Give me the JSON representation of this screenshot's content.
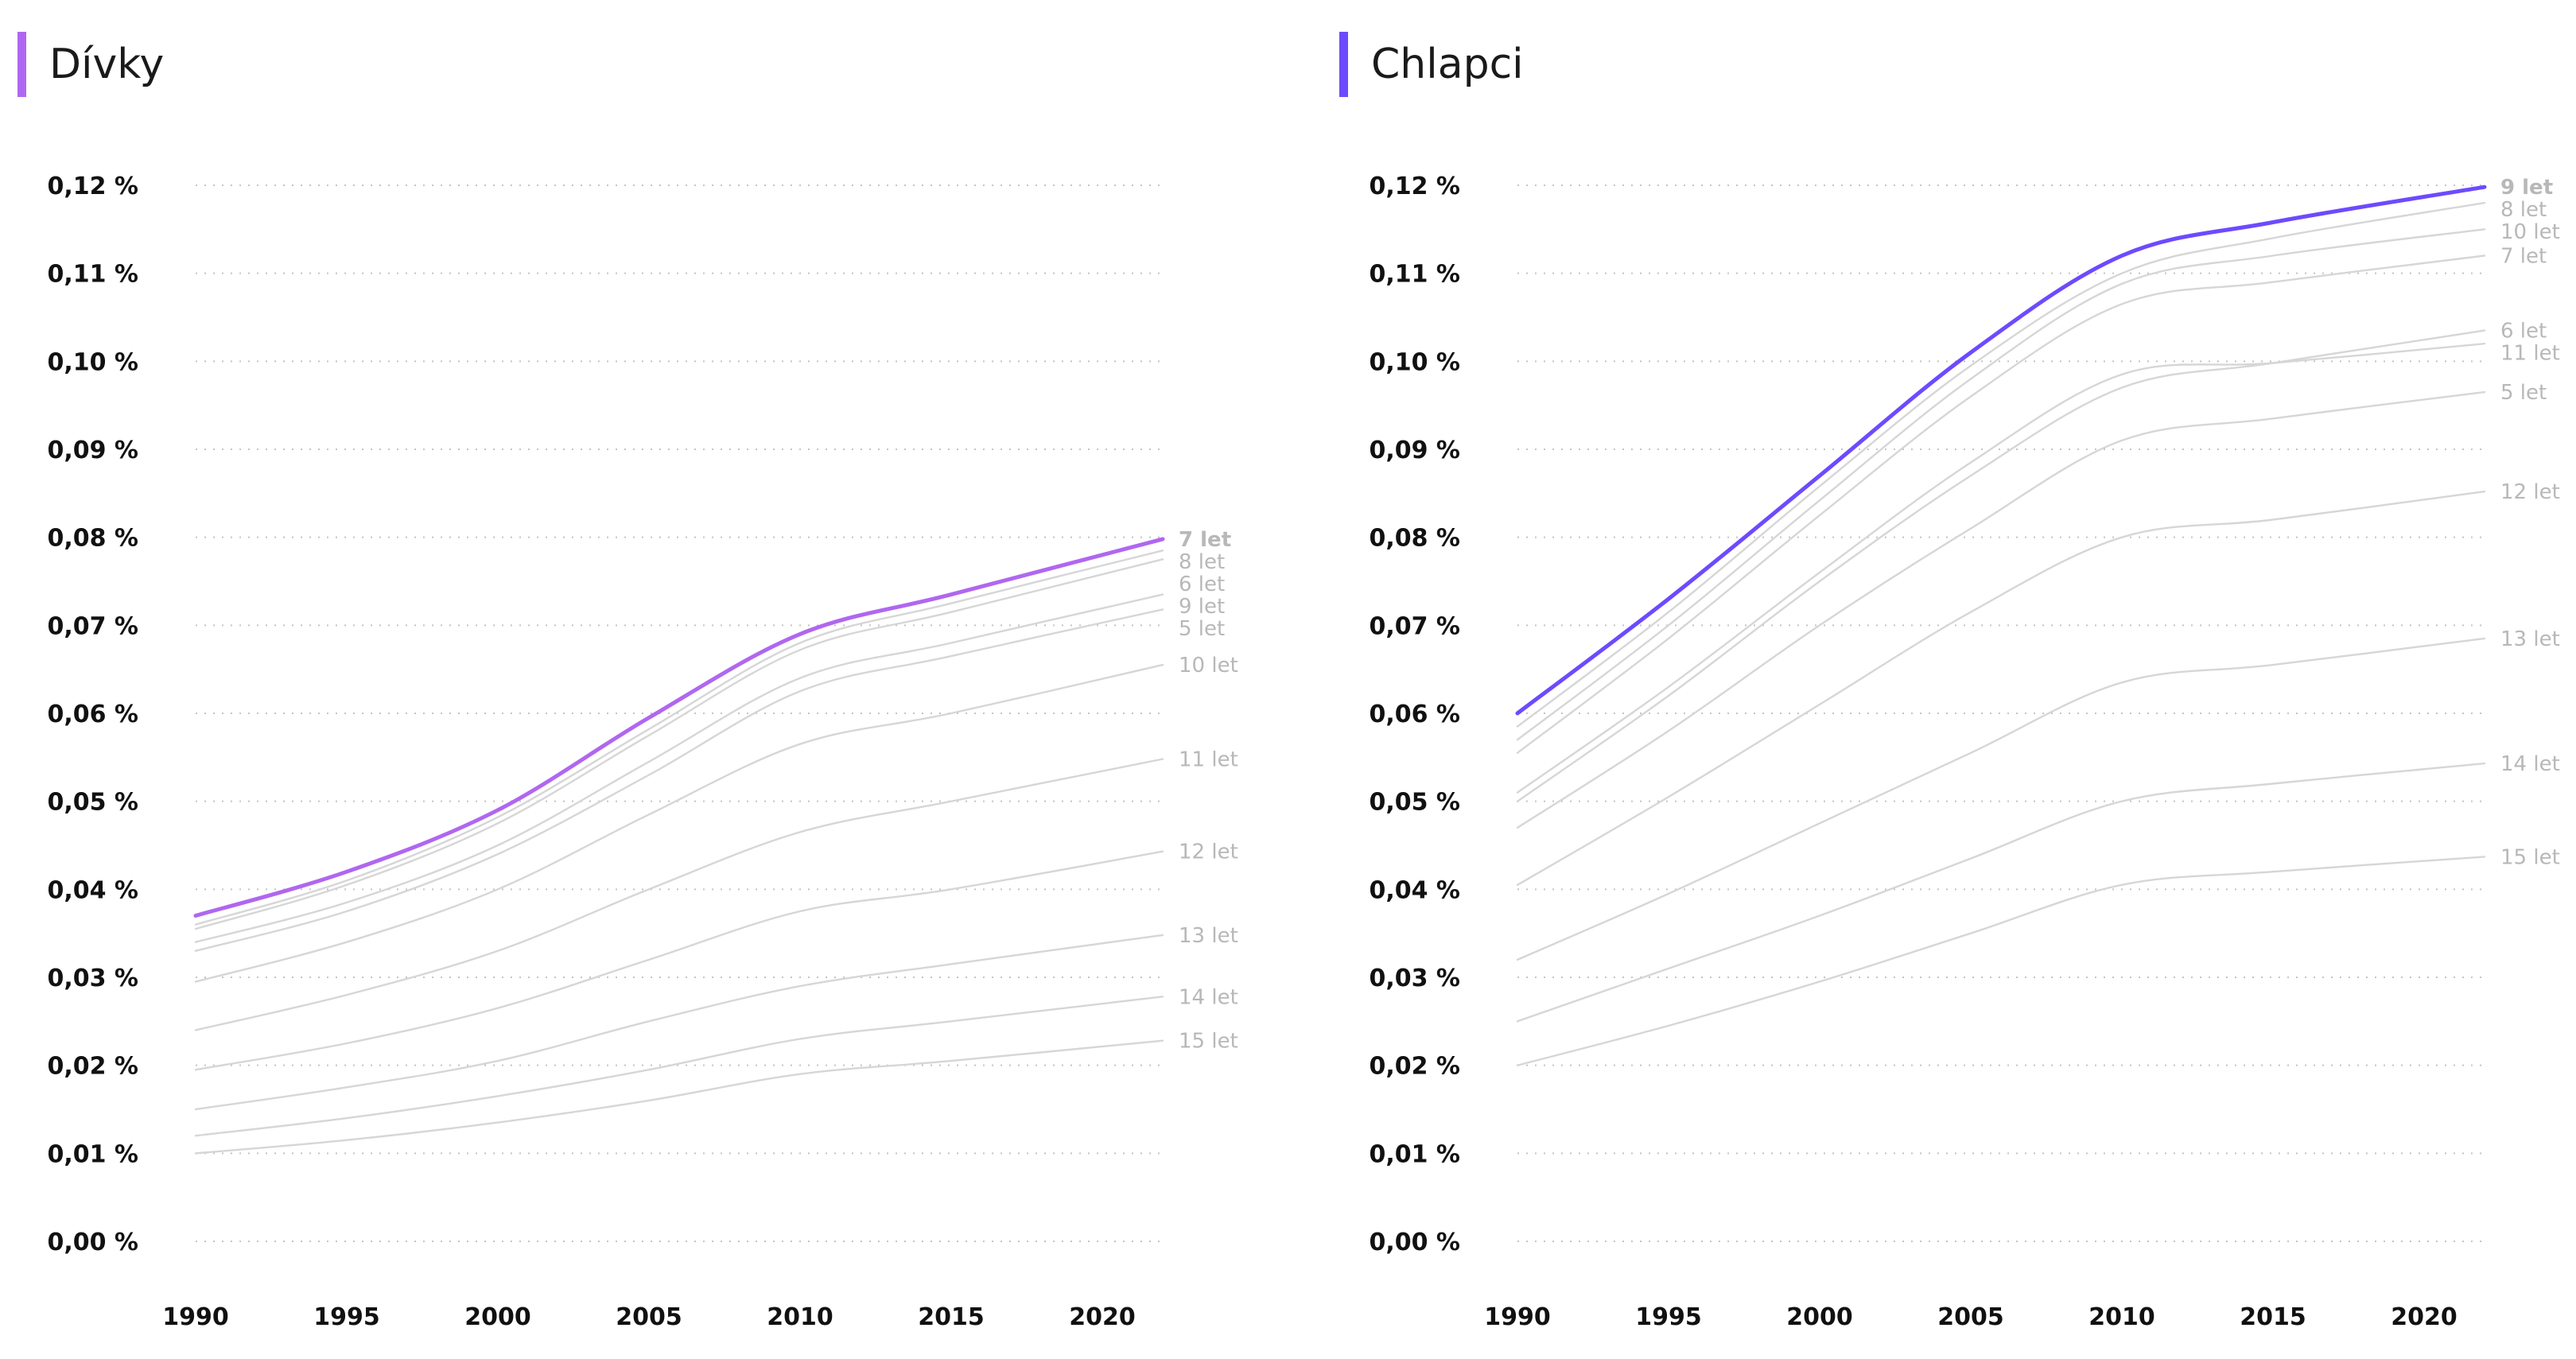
{
  "chart_data": [
    {
      "type": "line",
      "title": "Dívky",
      "accent_color": "#b067f0",
      "highlight_series": "7 let",
      "xlabel": "",
      "ylabel": "",
      "xlim": [
        1990,
        2022
      ],
      "ylim": [
        0,
        0.12
      ],
      "x_ticks": [
        "1990",
        "1995",
        "2000",
        "2005",
        "2010",
        "2015",
        "2020"
      ],
      "y_ticks": [
        "0,00 %",
        "0,01 %",
        "0,02 %",
        "0,03 %",
        "0,04 %",
        "0,05 %",
        "0,06 %",
        "0,07 %",
        "0,08 %",
        "0,09 %",
        "0,10 %",
        "0,11 %",
        "0,12 %"
      ],
      "grid": true,
      "x": [
        1990,
        1995,
        2000,
        2005,
        2010,
        2015,
        2022
      ],
      "series": [
        {
          "name": "5 let",
          "values": [
            0.033,
            0.0375,
            0.044,
            0.053,
            0.0625,
            0.0665,
            0.0718
          ]
        },
        {
          "name": "6 let",
          "values": [
            0.0355,
            0.0405,
            0.0475,
            0.0575,
            0.0672,
            0.0715,
            0.0775
          ]
        },
        {
          "name": "7 let",
          "values": [
            0.037,
            0.042,
            0.049,
            0.0595,
            0.069,
            0.0735,
            0.0798
          ]
        },
        {
          "name": "8 let",
          "values": [
            0.036,
            0.041,
            0.0482,
            0.0582,
            0.068,
            0.0725,
            0.0785
          ]
        },
        {
          "name": "9 let",
          "values": [
            0.034,
            0.0385,
            0.045,
            0.0545,
            0.064,
            0.068,
            0.0735
          ]
        },
        {
          "name": "10 let",
          "values": [
            0.0295,
            0.034,
            0.04,
            0.0485,
            0.0565,
            0.06,
            0.0655
          ]
        },
        {
          "name": "11 let",
          "values": [
            0.024,
            0.028,
            0.033,
            0.04,
            0.0465,
            0.05,
            0.0548
          ]
        },
        {
          "name": "12 let",
          "values": [
            0.0195,
            0.0225,
            0.0265,
            0.032,
            0.0375,
            0.04,
            0.0443
          ]
        },
        {
          "name": "13 let",
          "values": [
            0.015,
            0.0175,
            0.0205,
            0.025,
            0.029,
            0.0315,
            0.0348
          ]
        },
        {
          "name": "14 let",
          "values": [
            0.012,
            0.014,
            0.0165,
            0.0195,
            0.023,
            0.025,
            0.0278
          ]
        },
        {
          "name": "15 let",
          "values": [
            0.01,
            0.0115,
            0.0135,
            0.016,
            0.019,
            0.0205,
            0.0228
          ]
        }
      ]
    },
    {
      "type": "line",
      "title": "Chlapci",
      "accent_color": "#6d4aff",
      "highlight_series": "9 let",
      "xlabel": "",
      "ylabel": "",
      "xlim": [
        1990,
        2022
      ],
      "ylim": [
        0,
        0.12
      ],
      "x_ticks": [
        "1990",
        "1995",
        "2000",
        "2005",
        "2010",
        "2015",
        "2020"
      ],
      "y_ticks": [
        "0,00 %",
        "0,01 %",
        "0,02 %",
        "0,03 %",
        "0,04 %",
        "0,05 %",
        "0,06 %",
        "0,07 %",
        "0,08 %",
        "0,09 %",
        "0,10 %",
        "0,11 %",
        "0,12 %"
      ],
      "grid": true,
      "x": [
        1990,
        1995,
        2000,
        2005,
        2010,
        2015,
        2022
      ],
      "series": [
        {
          "name": "5 let",
          "values": [
            0.047,
            0.058,
            0.07,
            0.081,
            0.091,
            0.0935,
            0.0965
          ]
        },
        {
          "name": "6 let",
          "values": [
            0.05,
            0.062,
            0.075,
            0.087,
            0.097,
            0.0998,
            0.1035
          ]
        },
        {
          "name": "7 let",
          "values": [
            0.0555,
            0.0685,
            0.0825,
            0.096,
            0.1065,
            0.109,
            0.112
          ]
        },
        {
          "name": "8 let",
          "values": [
            0.0585,
            0.0715,
            0.0858,
            0.0995,
            0.11,
            0.114,
            0.118
          ]
        },
        {
          "name": "9 let",
          "values": [
            0.06,
            0.073,
            0.087,
            0.101,
            0.112,
            0.1158,
            0.1198
          ]
        },
        {
          "name": "10 let",
          "values": [
            0.057,
            0.07,
            0.0842,
            0.098,
            0.1088,
            0.112,
            0.115
          ]
        },
        {
          "name": "11 let",
          "values": [
            0.051,
            0.063,
            0.076,
            0.0885,
            0.0985,
            0.0998,
            0.102
          ]
        },
        {
          "name": "12 let",
          "values": [
            0.0405,
            0.0505,
            0.061,
            0.0715,
            0.08,
            0.082,
            0.0852
          ]
        },
        {
          "name": "13 let",
          "values": [
            0.032,
            0.0395,
            0.0475,
            0.0555,
            0.0635,
            0.0655,
            0.0685
          ]
        },
        {
          "name": "14 let",
          "values": [
            0.025,
            0.031,
            0.037,
            0.0435,
            0.05,
            0.052,
            0.0543
          ]
        },
        {
          "name": "15 let",
          "values": [
            0.02,
            0.0245,
            0.0295,
            0.035,
            0.0405,
            0.042,
            0.0437
          ]
        }
      ]
    }
  ]
}
